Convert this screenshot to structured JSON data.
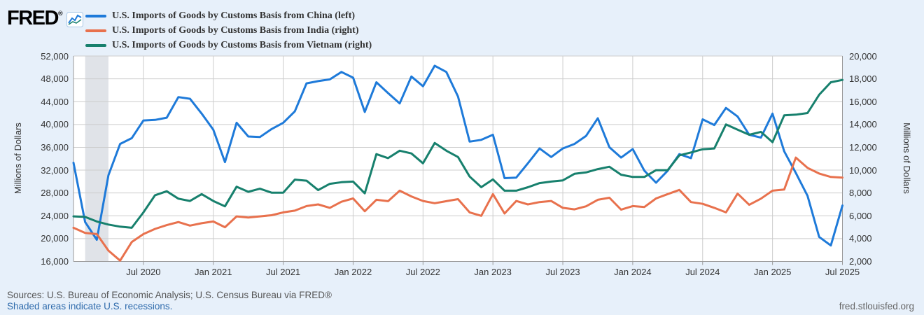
{
  "ui_colors": {
    "page_bg": "#e7f0fa",
    "plot_bg": "#ffffff",
    "grid": "#cccccc",
    "axis_line": "#999999",
    "recession_band": "#e0e3e8",
    "text": "#333333",
    "footer_text": "#555555",
    "link": "#2f6bac"
  },
  "header": {
    "logo_text": "FRED",
    "logo_registered": "®",
    "logo_icon": "fred-line-chart-icon"
  },
  "footer": {
    "sources": "Sources: U.S. Bureau of Economic Analysis; U.S. Census Bureau via FRED®",
    "recession_note": "Shaded areas indicate U.S. recessions.",
    "site": "fred.stlouisfed.org"
  },
  "chart_data": {
    "type": "line",
    "frequency": "monthly",
    "x_start": "2020-01",
    "x_end": "2025-07",
    "grid": true,
    "legend_position": "top",
    "left_axis": {
      "label": "Millions of Dollars",
      "min": 16000,
      "max": 52000,
      "tick_step": 4000,
      "ticks": [
        16000,
        20000,
        24000,
        28000,
        32000,
        36000,
        40000,
        44000,
        48000,
        52000
      ]
    },
    "right_axis": {
      "label": "Millions of Dollars",
      "min": 2000,
      "max": 20000,
      "tick_step": 2000,
      "ticks": [
        2000,
        4000,
        6000,
        8000,
        10000,
        12000,
        14000,
        16000,
        18000,
        20000
      ]
    },
    "x_ticks": [
      {
        "label": "Jul 2020",
        "month": "2020-07"
      },
      {
        "label": "Jan 2021",
        "month": "2021-01"
      },
      {
        "label": "Jul 2021",
        "month": "2021-07"
      },
      {
        "label": "Jan 2022",
        "month": "2022-01"
      },
      {
        "label": "Jul 2022",
        "month": "2022-07"
      },
      {
        "label": "Jan 2023",
        "month": "2023-01"
      },
      {
        "label": "Jul 2023",
        "month": "2023-07"
      },
      {
        "label": "Jan 2024",
        "month": "2024-01"
      },
      {
        "label": "Jul 2024",
        "month": "2024-07"
      },
      {
        "label": "Jan 2025",
        "month": "2025-01"
      },
      {
        "label": "Jul 2025",
        "month": "2025-07"
      }
    ],
    "recession_bands": [
      {
        "start": "2020-02",
        "end": "2020-04"
      }
    ],
    "series": [
      {
        "name": "U.S. Imports of Goods by Customs Basis from China (left)",
        "short_name": "China",
        "axis": "left",
        "color": "#1e7ad9",
        "values": [
          33300,
          22900,
          19800,
          31100,
          36600,
          37600,
          40700,
          40800,
          41200,
          44800,
          44500,
          41900,
          39100,
          33400,
          40300,
          37900,
          37800,
          39200,
          40300,
          42300,
          47200,
          47600,
          47900,
          49200,
          48200,
          42200,
          47400,
          45500,
          43700,
          48400,
          46700,
          50300,
          49200,
          44900,
          37000,
          37300,
          38200,
          30600,
          30700,
          33200,
          35800,
          34300,
          35800,
          36600,
          38000,
          41100,
          36000,
          34200,
          35700,
          31900,
          29800,
          31900,
          34800,
          34100,
          40900,
          39900,
          42900,
          41400,
          38200,
          37700,
          41900,
          35300,
          31500,
          27500,
          20300,
          18800,
          25800
        ]
      },
      {
        "name": "U.S. Imports of Goods by Customs Basis from India (right)",
        "short_name": "India",
        "axis": "right",
        "color": "#e8714d",
        "values": [
          4950,
          4500,
          4400,
          2950,
          2075,
          3700,
          4400,
          4850,
          5180,
          5450,
          5140,
          5350,
          5500,
          5000,
          5950,
          5850,
          5950,
          6050,
          6300,
          6450,
          6850,
          7000,
          6700,
          7230,
          7520,
          6400,
          7400,
          7280,
          8200,
          7700,
          7300,
          7100,
          7280,
          7460,
          6300,
          6000,
          7900,
          6200,
          7300,
          7000,
          7200,
          7300,
          6700,
          6560,
          6830,
          7400,
          7580,
          6540,
          6850,
          6770,
          7520,
          7900,
          8270,
          7200,
          7050,
          6700,
          6300,
          7940,
          6960,
          7500,
          8200,
          8300,
          11100,
          10200,
          9700,
          9400,
          9350
        ]
      },
      {
        "name": "U.S. Imports of Goods by Customs Basis from Vietnam (right)",
        "short_name": "Vietnam",
        "axis": "right",
        "color": "#17806d",
        "values": [
          5950,
          5900,
          5500,
          5230,
          5050,
          4950,
          6300,
          7800,
          8150,
          7500,
          7300,
          7900,
          7300,
          6830,
          8550,
          8100,
          8370,
          8030,
          8030,
          9170,
          9080,
          8250,
          8800,
          8940,
          9000,
          7970,
          11400,
          11050,
          11700,
          11460,
          10600,
          12380,
          11700,
          11150,
          9440,
          8510,
          9190,
          8200,
          8200,
          8500,
          8860,
          9000,
          9100,
          9680,
          9800,
          10090,
          10300,
          9600,
          9400,
          9400,
          10000,
          10000,
          11300,
          11550,
          11830,
          11900,
          14000,
          13550,
          13100,
          13350,
          12450,
          14800,
          14860,
          15000,
          16600,
          17700,
          17900
        ]
      }
    ]
  }
}
